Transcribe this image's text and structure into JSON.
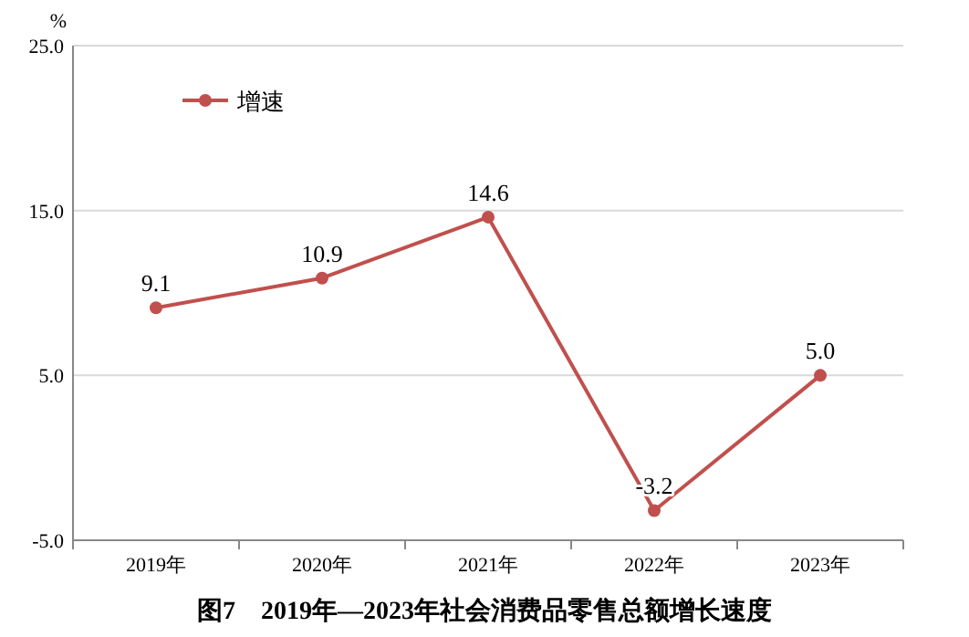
{
  "chart_data": {
    "type": "line",
    "title": "图7　2019年—2023年社会消费品零售总额增长速度",
    "ylabel": "%",
    "categories": [
      "2019年",
      "2020年",
      "2021年",
      "2022年",
      "2023年"
    ],
    "series": [
      {
        "name": "增速",
        "color": "#c0504d",
        "values": [
          9.1,
          10.9,
          14.6,
          -3.2,
          5.0
        ],
        "value_labels": [
          "9.1",
          "10.9",
          "14.6",
          "-3.2",
          "5.0"
        ]
      }
    ],
    "ylim": [
      -5,
      25
    ],
    "yticks": [
      {
        "value": -5,
        "label": "-5.0"
      },
      {
        "value": 5,
        "label": "5.0"
      },
      {
        "value": 15,
        "label": "15.0"
      },
      {
        "value": 25,
        "label": "25.0"
      }
    ],
    "grid": "y",
    "legend": "top left",
    "marker": "circle",
    "line_style": "solid"
  }
}
